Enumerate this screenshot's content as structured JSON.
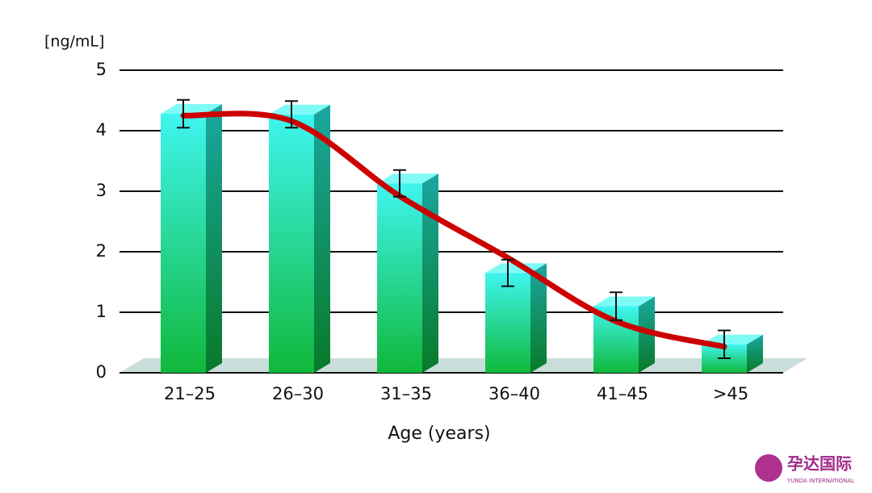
{
  "chart_data": {
    "type": "bar",
    "y_unit_label": "[ng/mL]",
    "x_label": "Age (years)",
    "categories": [
      "21–25",
      "26–30",
      "31–35",
      "36–40",
      "41–45",
      ">45"
    ],
    "values": [
      4.28,
      4.27,
      3.13,
      1.65,
      1.1,
      0.47
    ],
    "errors": [
      0.23,
      0.22,
      0.22,
      0.22,
      0.23,
      0.23
    ],
    "color": "#1ec95a",
    "trend": {
      "values": [
        4.25,
        4.16,
        2.92,
        1.9,
        0.85,
        0.43
      ],
      "color": "#cc0000"
    },
    "ylim": [
      0,
      5
    ],
    "yticks": [
      0,
      1,
      2,
      3,
      4,
      5
    ],
    "grid": true
  },
  "logo": {
    "name": "孕达国际",
    "subtitle": "YUNDA INTERNATIONAL"
  }
}
